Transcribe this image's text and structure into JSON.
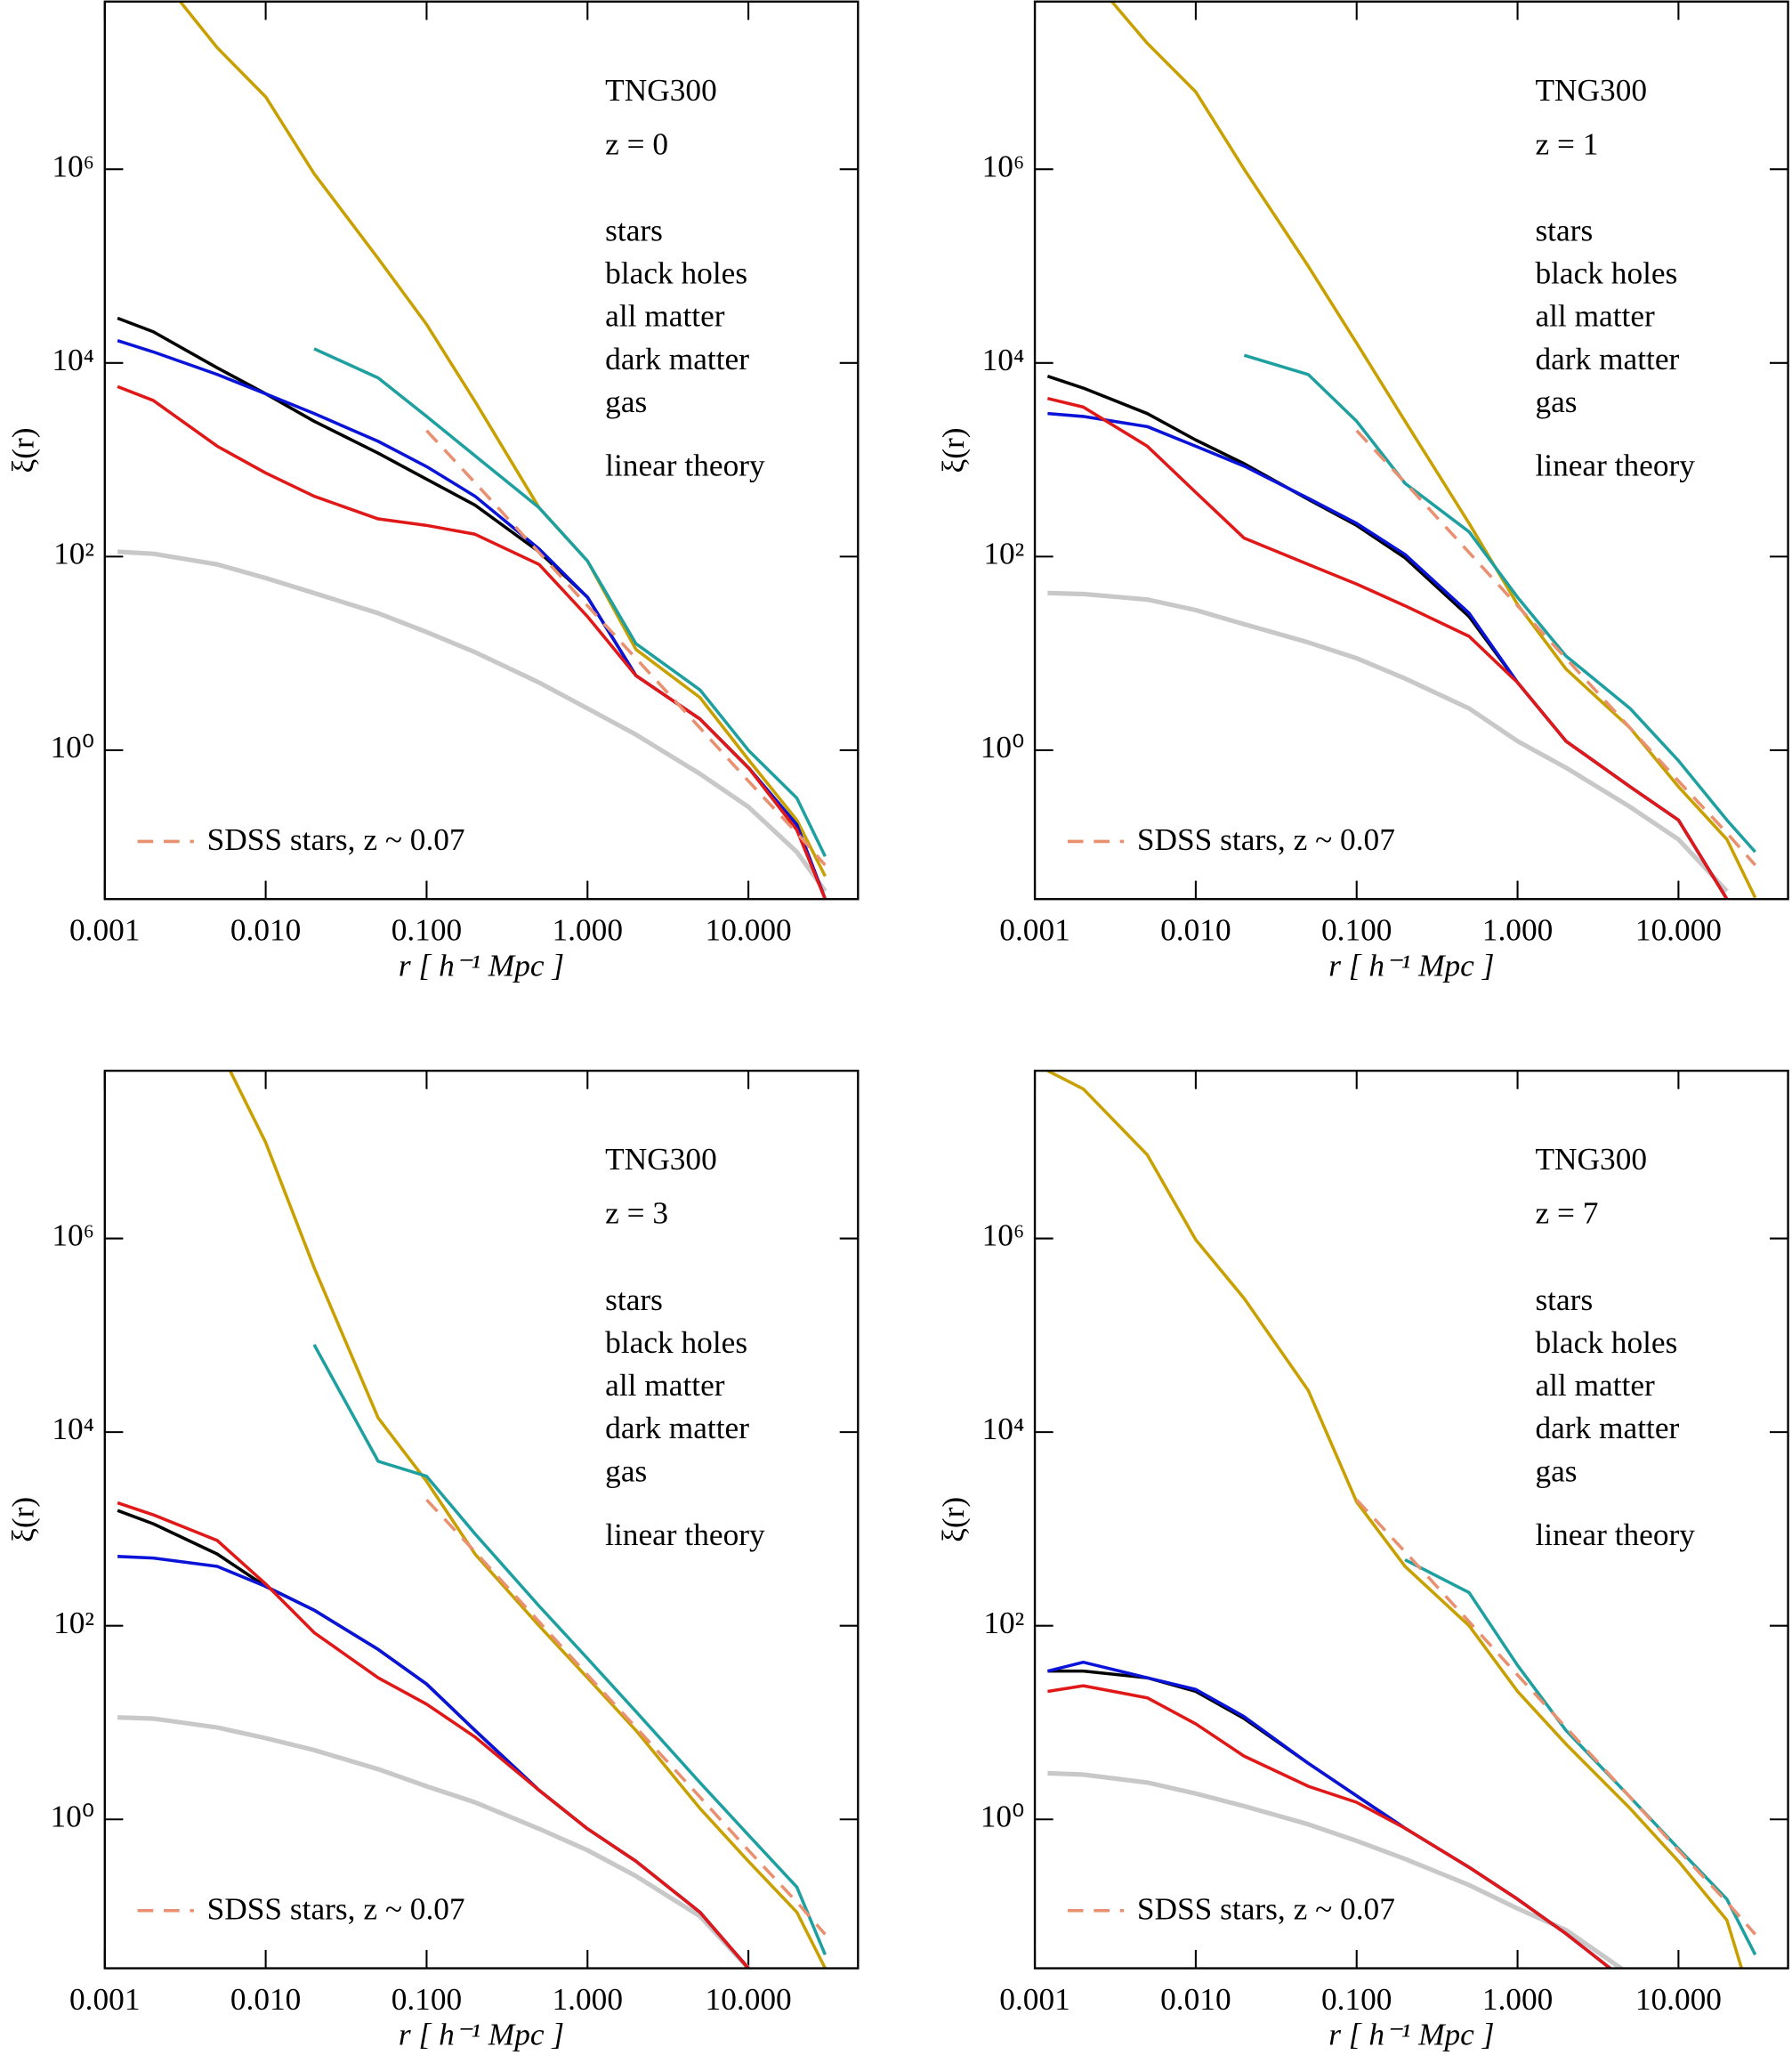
{
  "chart_data": [
    {
      "type": "line",
      "xlog": true,
      "ylog": true,
      "xlabel": "r  [ h⁻¹ Mpc ]",
      "ylabel": "ξ(r)",
      "annotations": [
        "TNG300",
        "z = 0"
      ],
      "xlim": [
        0.001,
        48
      ],
      "ylim": [
        0.029,
        54000000
      ],
      "xticks": [
        0.001,
        {
          "value": 0.01,
          "label": "0.010"
        },
        {
          "value": 0.1,
          "label": "0.100"
        },
        {
          "value": 1,
          "label": "1.000"
        },
        {
          "value": 10,
          "label": "10.000"
        }
      ],
      "yticks": [
        {
          "value": 1,
          "label": "10⁰"
        },
        {
          "value": 100,
          "label": "10²"
        },
        {
          "value": 10000,
          "label": "10⁴"
        },
        {
          "value": 1000000,
          "label": "10⁶"
        }
      ],
      "x": [
        0.0012,
        0.002,
        0.005,
        0.01,
        0.02,
        0.05,
        0.1,
        0.2,
        0.5,
        1,
        2,
        5,
        10,
        20,
        30
      ],
      "series": [
        {
          "name": "stars",
          "color": "#c8a000",
          "values": [
            null,
            120000000,
            18000000,
            5600000,
            900000,
            120000,
            25000,
            4000,
            320,
            90,
            11,
            3.5,
            0.8,
            0.19,
            0.05
          ]
        },
        {
          "name": "black holes",
          "color": "#1fa0a0",
          "values": [
            null,
            null,
            null,
            null,
            14000,
            7000,
            2800,
            1100,
            320,
            90,
            12.6,
            4.2,
            1.0,
            0.32,
            0.08
          ]
        },
        {
          "name": "all matter",
          "color": "#000000",
          "values": [
            29000,
            21000,
            8900,
            4800,
            2500,
            1170,
            630,
            340,
            112,
            38,
            5.9,
            2.1,
            0.66,
            0.17,
            0.029
          ]
        },
        {
          "name": "dark matter",
          "color": "#0a14d8",
          "values": [
            17000,
            13000,
            7600,
            4800,
            3000,
            1550,
            850,
            420,
            120,
            38,
            5.9,
            2.1,
            0.66,
            0.17,
            0.029
          ]
        },
        {
          "name": "gas",
          "color": "#e01818",
          "values": [
            5700,
            4100,
            1380,
            730,
            420,
            245,
            210,
            170,
            83,
            24,
            5.9,
            2.1,
            0.66,
            0.15,
            0.029
          ]
        },
        {
          "name": "linear theory",
          "color": "#c8c8c8",
          "values": [
            112,
            107,
            83,
            60,
            42,
            26,
            16.6,
            10.3,
            5,
            2.7,
            1.45,
            0.57,
            0.26,
            0.089,
            0.035
          ]
        },
        {
          "name": "SDSS stars, z ~ 0.07",
          "color": "#e89070",
          "dashed": true,
          "values": [
            null,
            null,
            null,
            null,
            null,
            null,
            2000,
            580,
            110,
            31,
            8.9,
            1.7,
            0.48,
            0.14,
            0.065
          ]
        }
      ]
    },
    {
      "type": "line",
      "xlog": true,
      "ylog": true,
      "xlabel": "r  [ h⁻¹ Mpc ]",
      "ylabel": "ξ(r)",
      "annotations": [
        "TNG300",
        "z = 1"
      ],
      "xlim": [
        0.001,
        48
      ],
      "ylim": [
        0.029,
        54000000
      ],
      "xticks": [
        0.001,
        {
          "value": 0.01,
          "label": "0.010"
        },
        {
          "value": 0.1,
          "label": "0.100"
        },
        {
          "value": 1,
          "label": "1.000"
        },
        {
          "value": 10,
          "label": "10.000"
        }
      ],
      "yticks": [
        {
          "value": 1,
          "label": "10⁰"
        },
        {
          "value": 100,
          "label": "10²"
        },
        {
          "value": 10000,
          "label": "10⁴"
        },
        {
          "value": 1000000,
          "label": "10⁶"
        }
      ],
      "x": [
        0.0012,
        0.002,
        0.005,
        0.01,
        0.02,
        0.05,
        0.1,
        0.2,
        0.5,
        1,
        2,
        5,
        10,
        20,
        30
      ],
      "series": [
        {
          "name": "stars",
          "color": "#c8a000",
          "values": [
            null,
            120000000,
            20000000,
            6300000,
            1000000,
            100000,
            16000,
            2500,
            220,
            32,
            6.9,
            1.7,
            0.42,
            0.12,
            0.03
          ]
        },
        {
          "name": "black holes",
          "color": "#1fa0a0",
          "values": [
            null,
            null,
            null,
            null,
            12000,
            7600,
            2500,
            570,
            180,
            38,
            9.4,
            2.7,
            0.78,
            0.19,
            0.089
          ]
        },
        {
          "name": "all matter",
          "color": "#000000",
          "values": [
            7300,
            5500,
            3000,
            1600,
            910,
            390,
            210,
            97,
            24,
            5,
            1.24,
            0.42,
            0.19,
            0.029,
            null
          ]
        },
        {
          "name": "dark matter",
          "color": "#0a14d8",
          "values": [
            3000,
            2800,
            2200,
            1380,
            860,
            400,
            220,
            105,
            26,
            5,
            1.24,
            0.42,
            0.19,
            0.029,
            null
          ]
        },
        {
          "name": "gas",
          "color": "#e01818",
          "values": [
            4300,
            3500,
            1380,
            460,
            155,
            83,
            52,
            31,
            15,
            5,
            1.24,
            0.42,
            0.19,
            0.029,
            null
          ]
        },
        {
          "name": "linear theory",
          "color": "#c8c8c8",
          "values": [
            42,
            41,
            36,
            28,
            20,
            13,
            8.9,
            5.5,
            2.7,
            1.24,
            0.66,
            0.26,
            0.12,
            0.035,
            null
          ]
        },
        {
          "name": "SDSS stars, z ~ 0.07",
          "color": "#e89070",
          "dashed": true,
          "values": [
            null,
            null,
            null,
            null,
            null,
            null,
            2000,
            580,
            110,
            31,
            8.9,
            1.7,
            0.48,
            0.14,
            0.065
          ]
        }
      ]
    },
    {
      "type": "line",
      "xlog": true,
      "ylog": true,
      "xlabel": "r  [ h⁻¹ Mpc ]",
      "ylabel": "ξ(r)",
      "annotations": [
        "TNG300",
        "z = 3"
      ],
      "xlim": [
        0.001,
        48
      ],
      "ylim": [
        0.029,
        54000000
      ],
      "xticks": [
        0.001,
        {
          "value": 0.01,
          "label": "0.010"
        },
        {
          "value": 0.1,
          "label": "0.100"
        },
        {
          "value": 1,
          "label": "1.000"
        },
        {
          "value": 10,
          "label": "10.000"
        }
      ],
      "yticks": [
        {
          "value": 1,
          "label": "10⁰"
        },
        {
          "value": 100,
          "label": "10²"
        },
        {
          "value": 10000,
          "label": "10⁴"
        },
        {
          "value": 1000000,
          "label": "10⁶"
        }
      ],
      "x": [
        0.0012,
        0.002,
        0.005,
        0.01,
        0.02,
        0.05,
        0.1,
        0.2,
        0.5,
        1,
        2,
        5,
        10,
        20,
        30
      ],
      "series": [
        {
          "name": "stars",
          "color": "#c8a000",
          "values": [
            null,
            null,
            100000000,
            9800000,
            500000,
            14000,
            3100,
            550,
            100,
            29,
            8.3,
            1.3,
            0.37,
            0.11,
            0.029
          ]
        },
        {
          "name": "black holes",
          "color": "#1fa0a0",
          "values": [
            null,
            null,
            null,
            null,
            80000,
            5000,
            3500,
            890,
            160,
            46,
            13,
            2.4,
            0.69,
            0.2,
            0.04
          ]
        },
        {
          "name": "all matter",
          "color": "#000000",
          "values": [
            1550,
            1130,
            550,
            255,
            145,
            57,
            25,
            8.3,
            2,
            0.8,
            0.37,
            0.11,
            0.029,
            null,
            null
          ]
        },
        {
          "name": "dark matter",
          "color": "#0a14d8",
          "values": [
            520,
            500,
            410,
            255,
            145,
            57,
            25,
            8.3,
            2,
            0.8,
            0.37,
            0.11,
            0.029,
            null,
            null
          ]
        },
        {
          "name": "gas",
          "color": "#e01818",
          "values": [
            1860,
            1400,
            760,
            270,
            85,
            29,
            15.5,
            7.1,
            2,
            0.8,
            0.37,
            0.11,
            0.029,
            null,
            null
          ]
        },
        {
          "name": "linear theory",
          "color": "#c8c8c8",
          "values": [
            11.3,
            11,
            8.9,
            6.9,
            5.2,
            3.3,
            2.2,
            1.5,
            0.8,
            0.48,
            0.26,
            0.1,
            0.029,
            null,
            null
          ]
        },
        {
          "name": "SDSS stars, z ~ 0.07",
          "color": "#e89070",
          "dashed": true,
          "values": [
            null,
            null,
            null,
            null,
            null,
            null,
            2000,
            580,
            110,
            31,
            8.9,
            1.7,
            0.48,
            0.14,
            0.065
          ]
        }
      ]
    },
    {
      "type": "line",
      "xlog": true,
      "ylog": true,
      "xlabel": "r  [ h⁻¹ Mpc ]",
      "ylabel": "ξ(r)",
      "annotations": [
        "TNG300",
        "z = 7"
      ],
      "xlim": [
        0.001,
        48
      ],
      "ylim": [
        0.029,
        54000000
      ],
      "xticks": [
        0.001,
        {
          "value": 0.01,
          "label": "0.010"
        },
        {
          "value": 0.1,
          "label": "0.100"
        },
        {
          "value": 1,
          "label": "1.000"
        },
        {
          "value": 10,
          "label": "10.000"
        }
      ],
      "yticks": [
        {
          "value": 1,
          "label": "10⁰"
        },
        {
          "value": 100,
          "label": "10²"
        },
        {
          "value": 10000,
          "label": "10⁴"
        },
        {
          "value": 1000000,
          "label": "10⁶"
        }
      ],
      "x": [
        0.0012,
        0.002,
        0.005,
        0.01,
        0.02,
        0.05,
        0.1,
        0.2,
        0.5,
        1,
        2,
        5,
        10,
        20,
        30
      ],
      "series": [
        {
          "name": "stars",
          "color": "#c8a000",
          "values": [
            54000000,
            35000000,
            7300000,
            970000,
            240000,
            27000,
            1900,
            410,
            100,
            21,
            6,
            1.3,
            0.37,
            0.091,
            0.01
          ]
        },
        {
          "name": "black holes",
          "color": "#1fa0a0",
          "values": [
            null,
            null,
            null,
            null,
            null,
            null,
            null,
            480,
            220,
            39,
            8.3,
            1.7,
            0.5,
            0.15,
            0.04
          ]
        },
        {
          "name": "all matter",
          "color": "#000000",
          "values": [
            34,
            34,
            29,
            21,
            11,
            3.8,
            1.75,
            0.81,
            0.32,
            0.15,
            0.066,
            0.02,
            null,
            null,
            null
          ]
        },
        {
          "name": "dark matter",
          "color": "#0a14d8",
          "values": [
            34,
            42,
            29,
            22,
            11.5,
            3.8,
            1.75,
            0.81,
            0.32,
            0.15,
            0.066,
            0.02,
            null,
            null,
            null
          ]
        },
        {
          "name": "gas",
          "color": "#e01818",
          "values": [
            21,
            24,
            18,
            9.7,
            4.5,
            2.2,
            1.5,
            0.81,
            0.32,
            0.15,
            0.066,
            0.02,
            null,
            null,
            null
          ]
        },
        {
          "name": "linear theory",
          "color": "#c8c8c8",
          "values": [
            3,
            2.9,
            2.4,
            1.85,
            1.37,
            0.89,
            0.6,
            0.39,
            0.21,
            0.12,
            0.072,
            0.025,
            null,
            null,
            null
          ]
        },
        {
          "name": "SDSS stars, z ~ 0.07",
          "color": "#e89070",
          "dashed": true,
          "values": [
            null,
            null,
            null,
            null,
            null,
            null,
            2000,
            580,
            110,
            31,
            8.9,
            1.7,
            0.48,
            0.14,
            0.065
          ]
        }
      ]
    }
  ]
}
